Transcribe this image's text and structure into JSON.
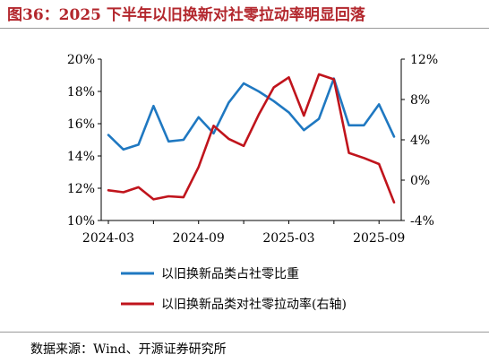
{
  "title": "图36：2025 下半年以旧换新对社零拉动率明显回落",
  "source": "数据来源：Wind、开源证券研究所",
  "chart_data": {
    "type": "line",
    "x": [
      "2024-03",
      "2024-04",
      "2024-05",
      "2024-06",
      "2024-07",
      "2024-08",
      "2024-09",
      "2024-10",
      "2024-11",
      "2024-12",
      "2025-01",
      "2025-02",
      "2025-03",
      "2025-04",
      "2025-05",
      "2025-06",
      "2025-07",
      "2025-08",
      "2025-09",
      "2025-10"
    ],
    "x_tick_labels": [
      "2024-03",
      "2024-09",
      "2025-03",
      "2025-09"
    ],
    "left_axis": {
      "ylim": [
        10,
        20
      ],
      "ticks": [
        "10%",
        "12%",
        "14%",
        "16%",
        "18%",
        "20%"
      ]
    },
    "right_axis": {
      "ylim": [
        -4,
        12
      ],
      "ticks": [
        "-4%",
        "0%",
        "4%",
        "8%",
        "12%"
      ]
    },
    "series": [
      {
        "name": "以旧换新品类占社零比重",
        "axis": "left",
        "color": "#1f78c1",
        "values": [
          15.3,
          14.4,
          14.7,
          17.1,
          14.9,
          15.0,
          16.4,
          15.4,
          17.3,
          18.5,
          18.0,
          17.4,
          16.7,
          15.6,
          16.3,
          18.8,
          15.9,
          15.9,
          17.2,
          15.2
        ]
      },
      {
        "name": "以旧换新品类对社零拉动率(右轴)",
        "axis": "right",
        "color": "#c0141c",
        "values": [
          -1.0,
          -1.2,
          -0.7,
          -1.9,
          -1.6,
          -1.7,
          1.3,
          5.4,
          4.1,
          3.4,
          6.5,
          9.2,
          10.2,
          6.4,
          10.5,
          10.0,
          2.7,
          2.2,
          1.6,
          -2.2
        ]
      }
    ]
  }
}
